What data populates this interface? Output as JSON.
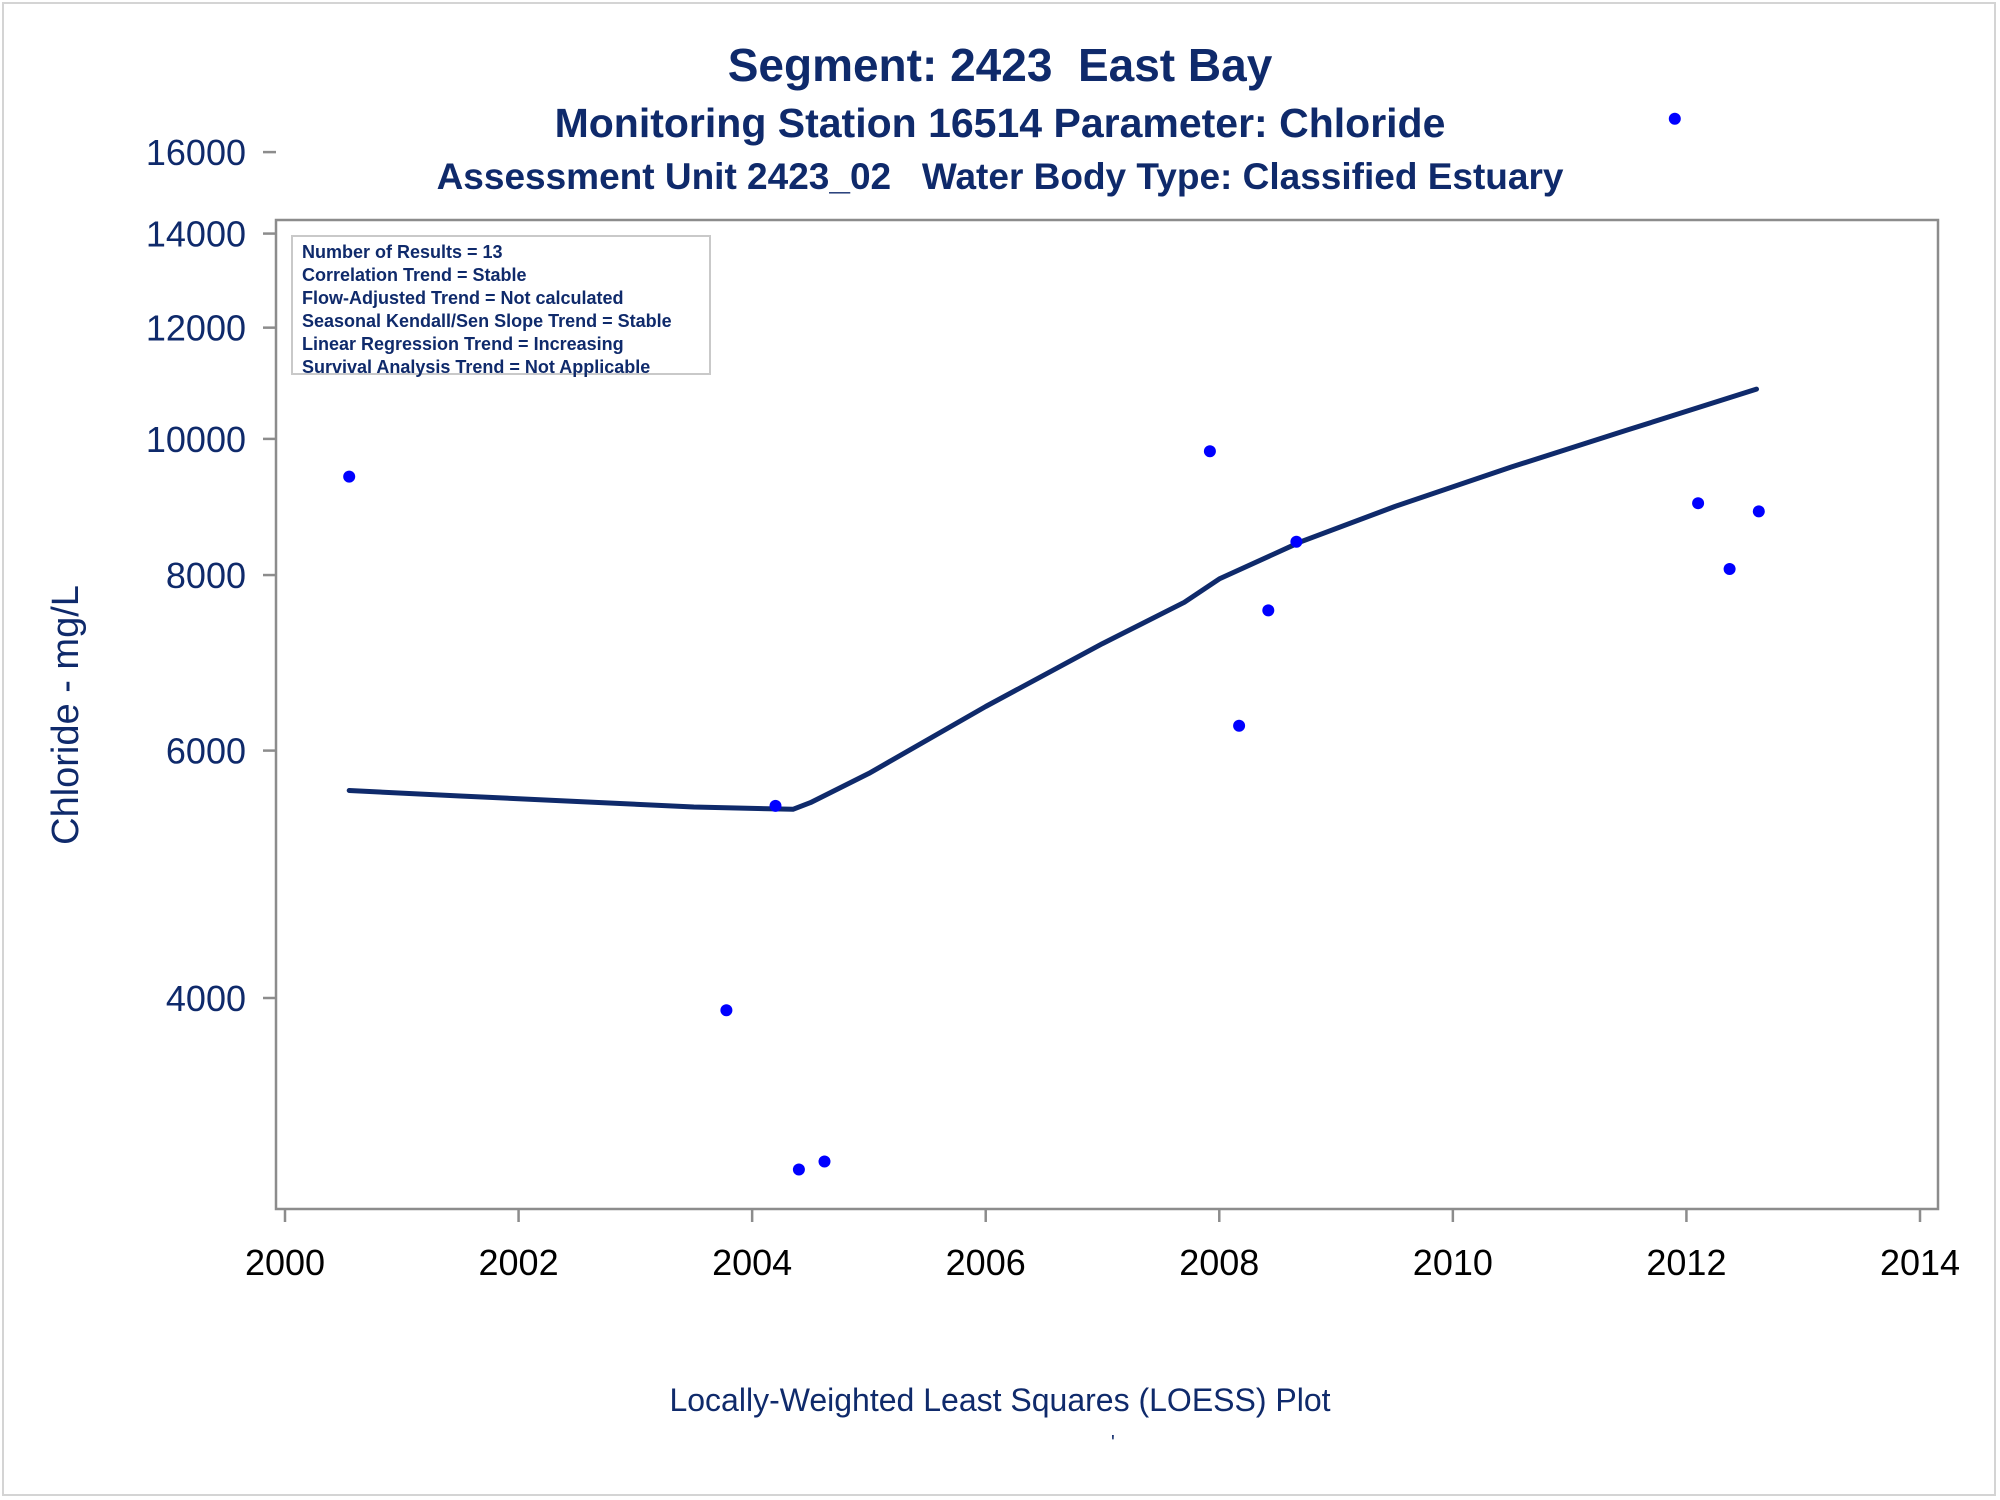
{
  "titles": {
    "line1": "Segment: 2423  East Bay",
    "line2": "Monitoring Station 16514 Parameter: Chloride",
    "line3": "Assessment Unit 2423_02   Water Body Type: Classified Estuary"
  },
  "legend_box": [
    "Number of Results = 13",
    "Correlation Trend = Stable",
    "Flow-Adjusted Trend = Not calculated",
    "Seasonal Kendall/Sen Slope Trend = Stable",
    "Linear Regression Trend = Increasing",
    "Survival Analysis Trend = Not Applicable"
  ],
  "footer": {
    "caption": "Locally-Weighted Least Squares (LOESS) Plot",
    "mark": "'"
  },
  "colors": {
    "title_text": "#0f2a6b",
    "points": "#0000ff",
    "loess_line": "#0f2a6b",
    "axis": "#8c8c8c"
  },
  "chart_data": {
    "type": "scatter",
    "ylabel": "Chloride - mg/L",
    "xlabel": "",
    "yscale": "log",
    "xlim": [
      2000,
      2014
    ],
    "ylim": [
      3000,
      17000
    ],
    "x_ticks": [
      "2000",
      "2002",
      "2004",
      "2006",
      "2008",
      "2010",
      "2012",
      "2014"
    ],
    "y_ticks": [
      "4000",
      "6000",
      "8000",
      "10000",
      "12000",
      "14000",
      "16000"
    ],
    "grid": false,
    "series": [
      {
        "kind": "points",
        "x": [
          2000.55,
          2003.78,
          2004.2,
          2004.4,
          2004.62,
          2007.92,
          2008.17,
          2008.42,
          2008.66,
          2011.9,
          2012.1,
          2012.37,
          2012.62
        ],
        "y": [
          9400,
          3920,
          5480,
          3020,
          3060,
          9800,
          6250,
          7550,
          8450,
          16900,
          9000,
          8080,
          8880
        ]
      },
      {
        "kind": "loess",
        "x": [
          2000.55,
          2001.5,
          2002.5,
          2003.5,
          2004.35,
          2004.5,
          2005.0,
          2006.0,
          2007.0,
          2007.7,
          2008.0,
          2008.7,
          2009.5,
          2010.5,
          2011.5,
          2012.6
        ],
        "y": [
          5620,
          5570,
          5520,
          5470,
          5450,
          5510,
          5780,
          6450,
          7150,
          7650,
          7950,
          8450,
          8950,
          9550,
          10150,
          10850
        ]
      }
    ]
  }
}
